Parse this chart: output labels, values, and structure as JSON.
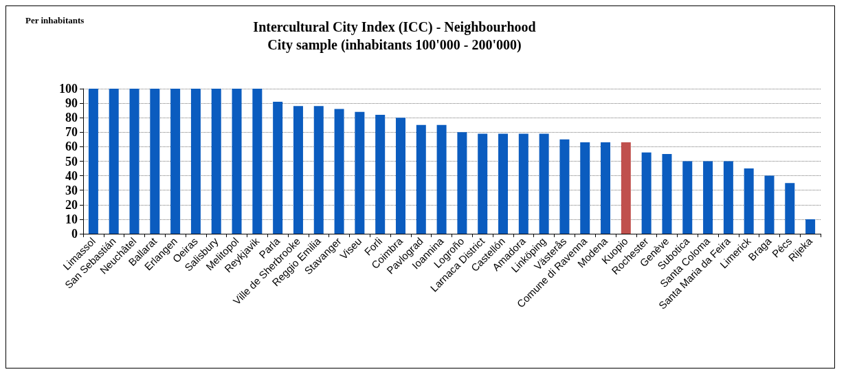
{
  "chart_data": {
    "type": "bar",
    "title": "Intercultural City Index (ICC) - Neighbourhood\nCity sample (inhabitants 100'000 - 200'000)",
    "annotations": [
      "Per inhabitants"
    ],
    "categories": [
      "Limassol",
      "San Sebastián",
      "Neuchâtel",
      "Ballarat",
      "Erlangen",
      "Oeiras",
      "Salisbury",
      "Melitopol",
      "Reykjavik",
      "Parla",
      "Ville de Sherbrooke",
      "Reggio Emilia",
      "Stavanger",
      "Viseu",
      "Forli",
      "Coimbra",
      "Pavlograd",
      "Ioannina",
      "Logroño",
      "Larnaca District",
      "Castellón",
      "Amadora",
      "Linköping",
      "Västerås",
      "Comune di Ravenna",
      "Modena",
      "Kuopio",
      "Rochester",
      "Genève",
      "Subotica",
      "Santa Coloma",
      "Santa Maria da Feira",
      "Limerick",
      "Braga",
      "Pécs",
      "Rijeka"
    ],
    "values": [
      100,
      100,
      100,
      100,
      100,
      100,
      100,
      100,
      100,
      91,
      88,
      88,
      86,
      84,
      82,
      80,
      75,
      75,
      70,
      69,
      69,
      69,
      69,
      65,
      63,
      63,
      63,
      56,
      55,
      50,
      50,
      50,
      45,
      40,
      35,
      10
    ],
    "colors": [
      "#0b5cbf",
      "#0b5cbf",
      "#0b5cbf",
      "#0b5cbf",
      "#0b5cbf",
      "#0b5cbf",
      "#0b5cbf",
      "#0b5cbf",
      "#0b5cbf",
      "#0b5cbf",
      "#0b5cbf",
      "#0b5cbf",
      "#0b5cbf",
      "#0b5cbf",
      "#0b5cbf",
      "#0b5cbf",
      "#0b5cbf",
      "#0b5cbf",
      "#0b5cbf",
      "#0b5cbf",
      "#0b5cbf",
      "#0b5cbf",
      "#0b5cbf",
      "#0b5cbf",
      "#0b5cbf",
      "#0b5cbf",
      "#c0504d",
      "#0b5cbf",
      "#0b5cbf",
      "#0b5cbf",
      "#0b5cbf",
      "#0b5cbf",
      "#0b5cbf",
      "#0b5cbf",
      "#0b5cbf",
      "#0b5cbf"
    ],
    "ylim": [
      0,
      100
    ],
    "yticks": [
      0,
      10,
      20,
      30,
      40,
      50,
      60,
      70,
      80,
      90,
      100
    ],
    "grid": "y"
  }
}
